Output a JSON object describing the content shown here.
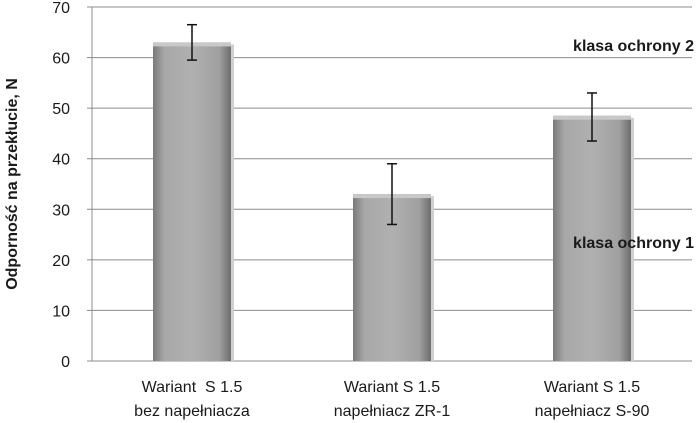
{
  "chart_data": {
    "type": "bar",
    "categories": [
      [
        "Wariant  S 1.5",
        "bez napełniacza"
      ],
      [
        "Wariant S 1.5",
        "napełniacz ZR-1"
      ],
      [
        "Wariant S 1.5",
        "napełniacz S-90"
      ]
    ],
    "values": [
      63,
      33,
      48.5
    ],
    "error_low": [
      59.5,
      27,
      43.5
    ],
    "error_high": [
      66.5,
      39,
      53
    ],
    "ylabel": "Odporność na przekłucie, N",
    "xlabel": "",
    "ylim": [
      0,
      70
    ],
    "yticks": [
      0,
      10,
      20,
      30,
      40,
      50,
      60,
      70
    ],
    "grid": true,
    "bar_color": "#a6a6a6",
    "annotations": [
      {
        "text": "klasa ochrony 2",
        "y": 62.5
      },
      {
        "text": "klasa ochrony 1",
        "y": 23.5
      }
    ]
  }
}
